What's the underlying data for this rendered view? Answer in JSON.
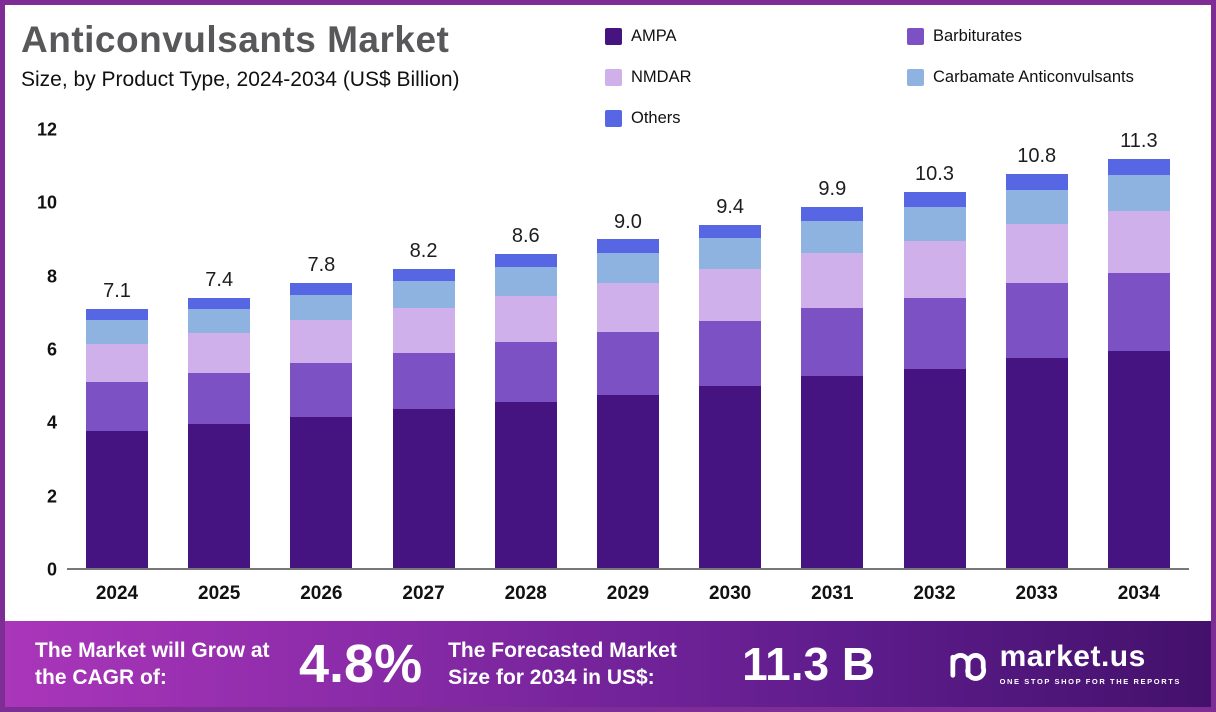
{
  "header": {
    "title": "Anticonvulsants Market",
    "subtitle": "Size, by Product Type, 2024-2034 (US$ Billion)"
  },
  "chart_data": {
    "type": "bar",
    "stacked": true,
    "title": "Anticonvulsants Market Size, by Product Type, 2024-2034 (US$ Billion)",
    "unit": "US$ Billion",
    "grid": false,
    "legend_position": "top-right",
    "categories": [
      "2024",
      "2025",
      "2026",
      "2027",
      "2028",
      "2029",
      "2030",
      "2031",
      "2032",
      "2033",
      "2034"
    ],
    "totals": [
      7.1,
      7.4,
      7.8,
      8.2,
      8.6,
      9.0,
      9.4,
      9.9,
      10.3,
      10.8,
      11.3
    ],
    "ylim": [
      0,
      12
    ],
    "yticks": [
      0,
      2,
      4,
      6,
      8,
      10,
      12
    ],
    "series": [
      {
        "name": "AMPA",
        "color": "#461480",
        "values": [
          3.75,
          3.95,
          4.15,
          4.35,
          4.55,
          4.75,
          5.0,
          5.25,
          5.45,
          5.75,
          6.0
        ]
      },
      {
        "name": "Barbiturates",
        "color": "#7b51c3",
        "values": [
          1.35,
          1.4,
          1.48,
          1.55,
          1.63,
          1.71,
          1.78,
          1.88,
          1.96,
          2.05,
          2.15
        ]
      },
      {
        "name": "NMDAR",
        "color": "#cfb0ea",
        "values": [
          1.05,
          1.1,
          1.16,
          1.22,
          1.28,
          1.35,
          1.41,
          1.49,
          1.55,
          1.62,
          1.7
        ]
      },
      {
        "name": "Carbamate Anticonvulsants",
        "color": "#8fb3e0",
        "values": [
          0.65,
          0.65,
          0.7,
          0.74,
          0.78,
          0.82,
          0.84,
          0.88,
          0.93,
          0.95,
          1.0
        ]
      },
      {
        "name": "Others",
        "color": "#5766e2",
        "values": [
          0.3,
          0.3,
          0.31,
          0.34,
          0.36,
          0.37,
          0.37,
          0.4,
          0.41,
          0.43,
          0.45
        ]
      }
    ]
  },
  "banner": {
    "cagr_label": "The Market will Grow at the CAGR of:",
    "cagr_value": "4.8%",
    "forecast_label": "The Forecasted Market Size for 2034 in US$:",
    "forecast_value": "11.3 B",
    "brand": "market.us",
    "tagline": "ONE STOP SHOP FOR THE REPORTS"
  }
}
